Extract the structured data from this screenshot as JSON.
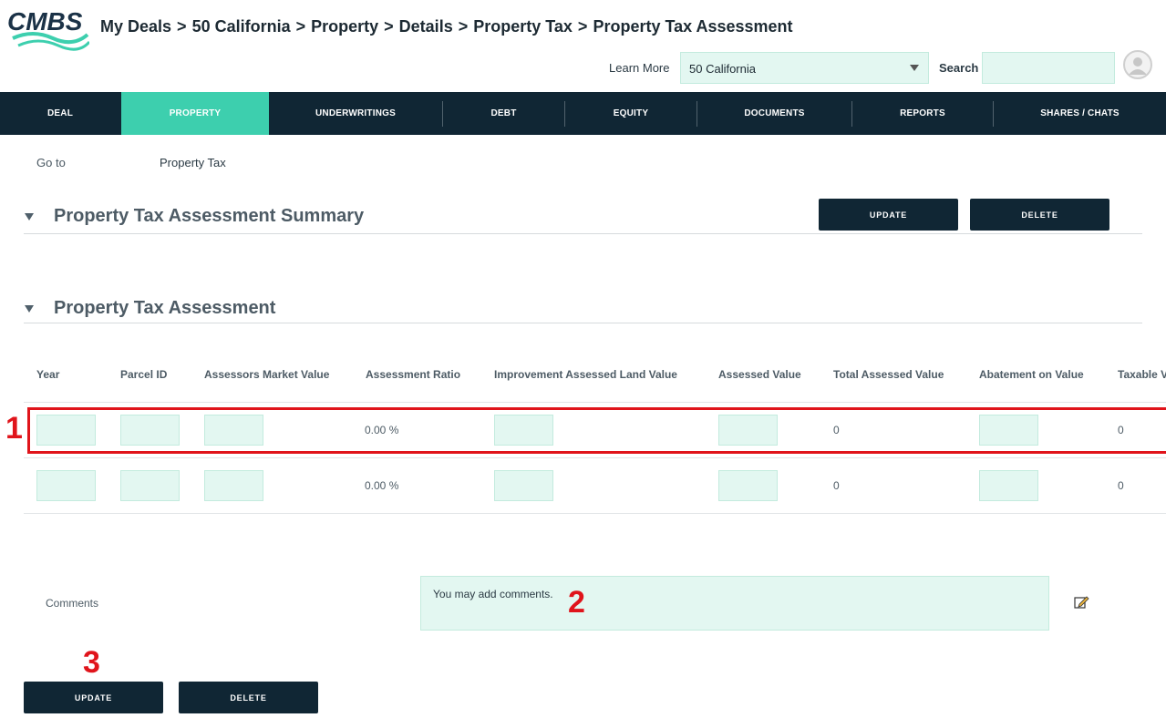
{
  "header": {
    "logo_text": "CMBS",
    "breadcrumb": [
      "My Deals",
      "50 California",
      "Property",
      "Details",
      "Property Tax",
      "Property Tax Assessment"
    ],
    "learn_more": "Learn More",
    "deal_select_value": "50 California",
    "search_label": "Search",
    "search_value": ""
  },
  "nav": {
    "items": [
      "DEAL",
      "PROPERTY",
      "UNDERWRITINGS",
      "DEBT",
      "EQUITY",
      "DOCUMENTS",
      "REPORTS",
      "SHARES / CHATS"
    ],
    "active": "PROPERTY"
  },
  "goto": {
    "label": "Go to",
    "value": "Property Tax"
  },
  "summary_section": {
    "title": "Property Tax Assessment Summary",
    "update_label": "UPDATE",
    "delete_label": "DELETE"
  },
  "assessment_section": {
    "title": "Property Tax Assessment",
    "columns": [
      "Year",
      "Parcel ID",
      "Assessors Market Value",
      "Assessment Ratio",
      "Improvement Assessed Land Value",
      "Assessed Value",
      "Total Assessed Value",
      "Abatement on Value",
      "Taxable V"
    ],
    "rows": [
      {
        "assessment_ratio": "0.00 %",
        "total_assessed_value": "0",
        "taxable_value": "0"
      },
      {
        "assessment_ratio": "0.00 %",
        "total_assessed_value": "0",
        "taxable_value": "0"
      }
    ]
  },
  "comments": {
    "label": "Comments",
    "placeholder": "You may add comments."
  },
  "footer": {
    "update_label": "UPDATE",
    "delete_label": "DELETE"
  },
  "annotations": [
    "1",
    "2",
    "3"
  ],
  "colors": {
    "nav_bg": "#102634",
    "accent": "#3dcfae",
    "input_bg": "#e3f7f1",
    "annotation": "#e0141b"
  }
}
